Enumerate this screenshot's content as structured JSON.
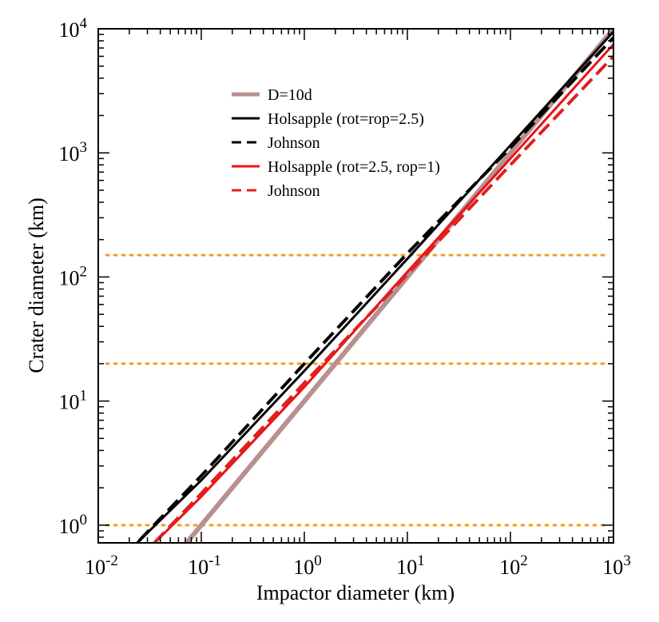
{
  "chart_data": {
    "type": "line",
    "xlabel": "Impactor diameter (km)",
    "ylabel": "Crater diameter (km)",
    "xscale": "log",
    "yscale": "log",
    "xlim": [
      0.01,
      1000
    ],
    "ylim": [
      0.72,
      10000
    ],
    "x_ticks": [
      {
        "base": "10",
        "exp": "-2",
        "value": 0.01
      },
      {
        "base": "10",
        "exp": "-1",
        "value": 0.1
      },
      {
        "base": "10",
        "exp": "0",
        "value": 1
      },
      {
        "base": "10",
        "exp": "1",
        "value": 10
      },
      {
        "base": "10",
        "exp": "2",
        "value": 100
      },
      {
        "base": "10",
        "exp": "3",
        "value": 1000
      }
    ],
    "y_ticks": [
      {
        "base": "10",
        "exp": "0",
        "value": 1
      },
      {
        "base": "10",
        "exp": "1",
        "value": 10
      },
      {
        "base": "10",
        "exp": "2",
        "value": 100
      },
      {
        "base": "10",
        "exp": "3",
        "value": 1000
      },
      {
        "base": "10",
        "exp": "4",
        "value": 10000
      }
    ],
    "grid": false,
    "legend_position": "top-left",
    "series": [
      {
        "name": "D=10d",
        "color": "#b89090",
        "style": "solid",
        "width": 6,
        "x": [
          0.07,
          1000
        ],
        "y": [
          0.7,
          10000
        ]
      },
      {
        "name": "Holsapple (rot=rop=2.5)",
        "color": "#000000",
        "style": "solid",
        "width": 3,
        "x": [
          0.023,
          0.1,
          1,
          10,
          100,
          1000
        ],
        "y": [
          0.7,
          2.3,
          17.5,
          140,
          1150,
          9500
        ]
      },
      {
        "name": "Johnson",
        "color": "#000000",
        "style": "dashed",
        "width": 4,
        "x": [
          0.025,
          0.1,
          1,
          10,
          100,
          1000
        ],
        "y": [
          0.75,
          2.5,
          20,
          155,
          1100,
          8500
        ]
      },
      {
        "name": "Holsapple (rot=2.5, rop=1)",
        "color": "#ee1111",
        "style": "solid",
        "width": 3,
        "x": [
          0.034,
          0.1,
          1,
          10,
          100,
          1000
        ],
        "y": [
          0.7,
          1.7,
          13,
          110,
          900,
          7500
        ]
      },
      {
        "name": "Johnson",
        "color": "#dd2222",
        "style": "dashed",
        "width": 4,
        "x": [
          0.035,
          0.1,
          1,
          10,
          100,
          1000
        ],
        "y": [
          0.72,
          1.8,
          14,
          105,
          800,
          6000
        ]
      }
    ],
    "reference_lines": [
      {
        "y": 1,
        "color": "#f0a020",
        "style": "dotted"
      },
      {
        "y": 20,
        "color": "#f0a020",
        "style": "dotted"
      },
      {
        "y": 150,
        "color": "#f0a020",
        "style": "dotted"
      }
    ]
  }
}
